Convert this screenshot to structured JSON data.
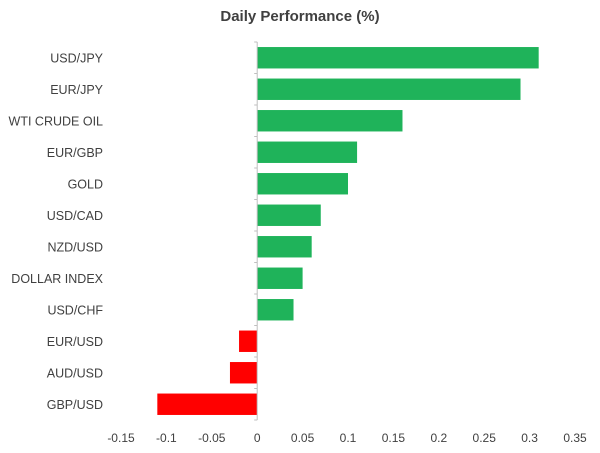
{
  "chart_data": {
    "type": "bar",
    "orientation": "horizontal",
    "title": "Daily Performance (%)",
    "xlabel": "",
    "ylabel": "",
    "categories": [
      "USD/JPY",
      "EUR/JPY",
      "WTI CRUDE OIL",
      "EUR/GBP",
      "GOLD",
      "USD/CAD",
      "NZD/USD",
      "DOLLAR INDEX",
      "USD/CHF",
      "EUR/USD",
      "AUD/USD",
      "GBP/USD"
    ],
    "values": [
      0.31,
      0.29,
      0.16,
      0.11,
      0.1,
      0.07,
      0.06,
      0.05,
      0.04,
      -0.02,
      -0.03,
      -0.11
    ],
    "xlim": [
      -0.15,
      0.35
    ],
    "xticks": [
      "-0.15",
      "-0.1",
      "-0.05",
      "0",
      "0.05",
      "0.1",
      "0.15",
      "0.2",
      "0.25",
      "0.3",
      "0.35"
    ],
    "grid": false,
    "legend": "none",
    "colors": {
      "positive": "#1fb35a",
      "negative": "#ff0000",
      "text": "#404040",
      "axis": "#bfbfbf"
    }
  }
}
